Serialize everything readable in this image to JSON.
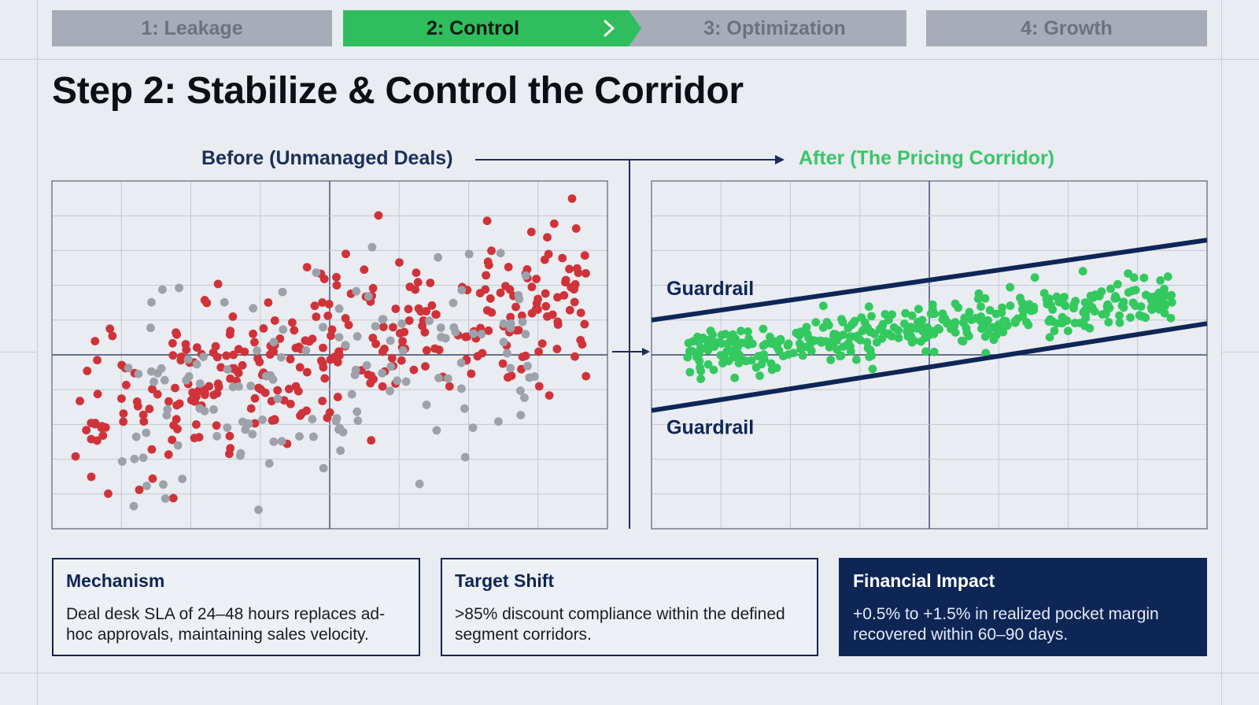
{
  "steps": [
    {
      "label": "1: Leakage",
      "state": "inactive"
    },
    {
      "label": "2: Control",
      "state": "active"
    },
    {
      "label": "3: Optimization",
      "state": "inactive"
    },
    {
      "label": "4: Growth",
      "state": "inactive"
    }
  ],
  "title": "Step 2: Stabilize & Control the Corridor",
  "colors": {
    "accent_green": "#2fbd5e",
    "unmanaged_red": "#cf3339",
    "neutral_gray": "#9ca1aa",
    "corridor_green": "#33c95f",
    "navy": "#0e2656"
  },
  "icons": {
    "step_arrow": "chevron-right-icon",
    "flow_arrow": "arrow-right-icon"
  },
  "chart_data": [
    {
      "type": "scatter",
      "label": "Before (Unmanaged Deals)",
      "grid": true,
      "xlim": [
        0,
        16
      ],
      "ylim": [
        0,
        10
      ],
      "series": [
        {
          "color": "#cf3339",
          "seed": 11,
          "count": 330,
          "slope": 0.22,
          "intercept": 3.3,
          "spread": 1.9,
          "xrange": [
            0.6,
            15.4
          ]
        },
        {
          "color": "#9ca1aa",
          "seed": 29,
          "count": 140,
          "slope": 0.12,
          "intercept": 3.4,
          "spread": 2.2,
          "xrange": [
            2,
            14
          ]
        }
      ]
    },
    {
      "type": "scatter",
      "label": "After (The Pricing Corridor)",
      "grid": true,
      "xlim": [
        0,
        16
      ],
      "ylim": [
        0,
        10
      ],
      "guardrails": [
        {
          "label": "Guardrail",
          "x": [
            0,
            16
          ],
          "y": [
            6.0,
            8.3
          ]
        },
        {
          "label": "Guardrail",
          "x": [
            0,
            16
          ],
          "y": [
            3.4,
            5.9
          ]
        }
      ],
      "series": [
        {
          "color": "#33c95f",
          "seed": 7,
          "count": 380,
          "slope": 0.13,
          "intercept": 4.8,
          "spread": 0.55,
          "xrange": [
            1,
            15
          ]
        }
      ]
    }
  ],
  "cards": [
    {
      "title": "Mechanism",
      "body": "Deal desk SLA of 24–48 hours replaces ad-hoc approvals, maintaining sales velocity."
    },
    {
      "title": "Target Shift",
      "body": ">85% discount compliance within the defined segment corridors."
    },
    {
      "title": "Financial Impact",
      "body": "+0.5% to +1.5% in realized pocket margin recovered within 60–90 days."
    }
  ]
}
